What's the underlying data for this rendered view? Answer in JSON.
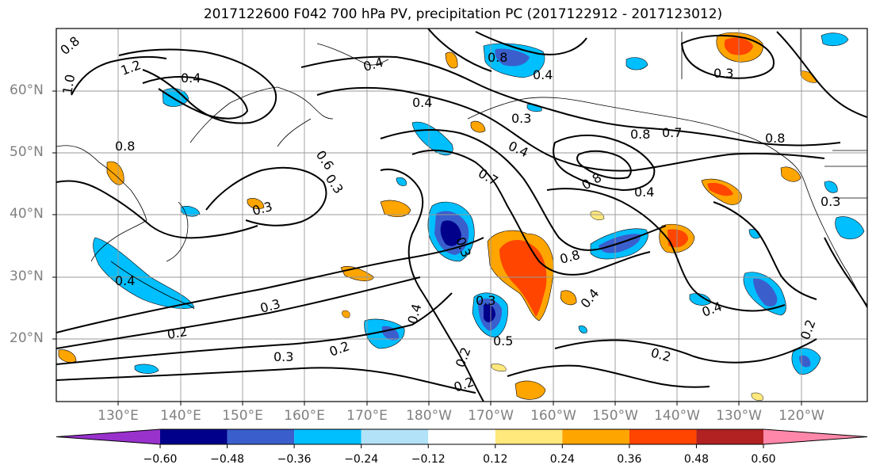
{
  "title": "2017122600 F042 700 hPa PV, precipitation PC (2017122912 - 2017123012)",
  "lat_labels": [
    "60°N",
    "50°N",
    "40°N",
    "30°N",
    "20°N"
  ],
  "lon_labels": [
    "130°E",
    "140°E",
    "150°E",
    "160°E",
    "170°E",
    "180°W",
    "170°W",
    "160°W",
    "150°W",
    "140°W",
    "130°W",
    "120°W"
  ],
  "contour_labels": [
    "1.2",
    "0.4",
    "0.8",
    "0.3",
    "0.5",
    "0.6",
    "0.7",
    "0.2",
    "1.0"
  ],
  "colorbar": {
    "tick_labels": [
      "−0.60",
      "−0.48",
      "−0.36",
      "−0.24",
      "−0.12",
      "0.12",
      "0.24",
      "0.36",
      "0.48",
      "0.60"
    ],
    "colors": [
      "#9932CC",
      "#00008B",
      "#3A5FCD",
      "#00BFFF",
      "#B2E2F8",
      "#FFFFFF",
      "#FFE87C",
      "#FFA500",
      "#FF4500",
      "#B22222",
      "#FF88AA"
    ]
  }
}
